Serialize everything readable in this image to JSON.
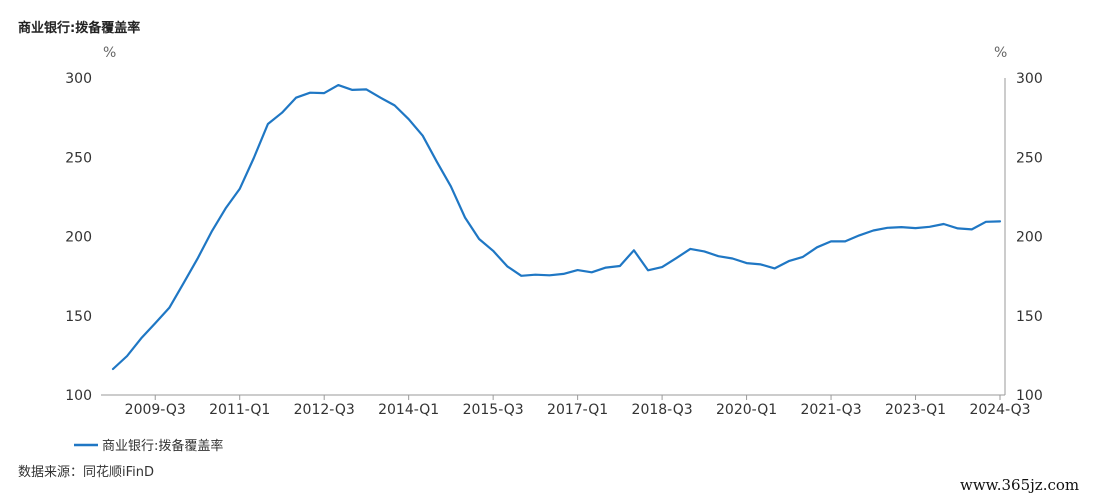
{
  "title": "商业银行:拨备覆盖率",
  "source": "数据来源：同花顺iFinD",
  "watermark": "www.365jz.com",
  "colors": {
    "series": "#1f77c4",
    "axis": "#9a9a9a",
    "text": "#333333"
  },
  "chart_data": {
    "type": "line",
    "y_unit_left": "%",
    "y_unit_right": "%",
    "ylim": [
      100,
      300
    ],
    "y_ticks": [
      "100",
      "150",
      "200",
      "250",
      "300"
    ],
    "x_tick_labels": [
      "2009-Q3",
      "2011-Q1",
      "2012-Q3",
      "2014-Q1",
      "2015-Q3",
      "2017-Q1",
      "2018-Q3",
      "2020-Q1",
      "2021-Q3",
      "2023-Q1",
      "2024-Q3"
    ],
    "legend_position": "bottom-left",
    "grid": false,
    "series": [
      {
        "name": "商业银行:拨备覆盖率",
        "color": "#1f77c4",
        "x": [
          "2008-Q4",
          "2009-Q1",
          "2009-Q2",
          "2009-Q3",
          "2009-Q4",
          "2010-Q1",
          "2010-Q2",
          "2010-Q3",
          "2010-Q4",
          "2011-Q1",
          "2011-Q2",
          "2011-Q3",
          "2011-Q4",
          "2012-Q1",
          "2012-Q2",
          "2012-Q3",
          "2012-Q4",
          "2013-Q1",
          "2013-Q2",
          "2013-Q3",
          "2013-Q4",
          "2014-Q1",
          "2014-Q2",
          "2014-Q3",
          "2014-Q4",
          "2015-Q1",
          "2015-Q2",
          "2015-Q3",
          "2015-Q4",
          "2016-Q1",
          "2016-Q2",
          "2016-Q3",
          "2016-Q4",
          "2017-Q1",
          "2017-Q2",
          "2017-Q3",
          "2017-Q4",
          "2018-Q1",
          "2018-Q2",
          "2018-Q3",
          "2018-Q4",
          "2019-Q1",
          "2019-Q2",
          "2019-Q3",
          "2019-Q4",
          "2020-Q1",
          "2020-Q2",
          "2020-Q3",
          "2020-Q4",
          "2021-Q1",
          "2021-Q2",
          "2021-Q3",
          "2021-Q4",
          "2022-Q1",
          "2022-Q2",
          "2022-Q3",
          "2022-Q4",
          "2023-Q1",
          "2023-Q2",
          "2023-Q3",
          "2023-Q4",
          "2024-Q1",
          "2024-Q2",
          "2024-Q3"
        ],
        "values": [
          116.4,
          124.6,
          135.8,
          145.3,
          155.0,
          170.4,
          186.0,
          203.0,
          217.7,
          230.0,
          249.5,
          271.0,
          278.1,
          287.6,
          290.7,
          290.5,
          295.5,
          292.5,
          292.8,
          287.6,
          282.7,
          274.0,
          263.6,
          247.2,
          231.6,
          212.0,
          198.4,
          191.0,
          181.2,
          175.2,
          175.9,
          175.5,
          176.4,
          178.8,
          177.4,
          180.4,
          181.4,
          191.3,
          178.7,
          180.7,
          186.3,
          192.2,
          190.6,
          187.6,
          186.1,
          183.2,
          182.4,
          179.9,
          184.5,
          187.1,
          193.2,
          196.9,
          196.9,
          200.7,
          203.8,
          205.5,
          205.9,
          205.3,
          206.1,
          207.9,
          205.1,
          204.5,
          209.3,
          209.5
        ]
      }
    ]
  }
}
